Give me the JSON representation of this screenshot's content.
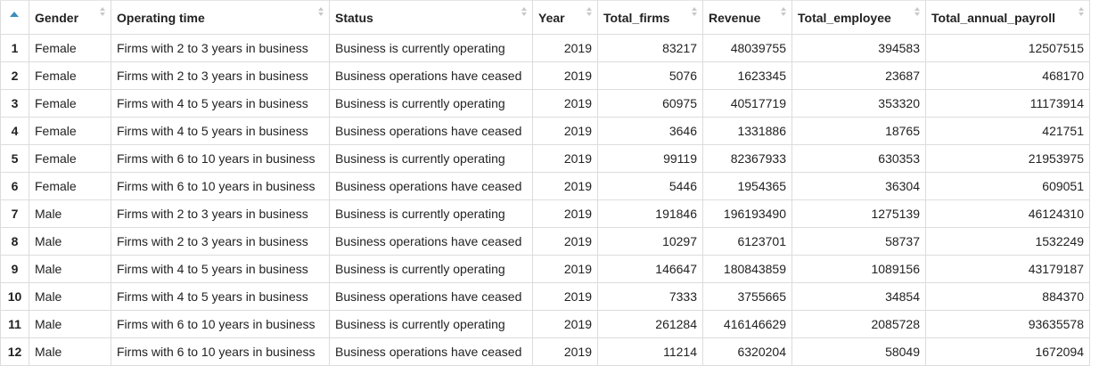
{
  "columns": [
    "Gender",
    "Operating time",
    "Status",
    "Year",
    "Total_firms",
    "Revenue",
    "Total_employee",
    "Total_annual_payroll"
  ],
  "rows": [
    {
      "idx": "1",
      "gender": "Female",
      "op": "Firms with 2 to 3 years in business",
      "status": "Business is currently operating",
      "year": "2019",
      "firms": "83217",
      "rev": "48039755",
      "emp": "394583",
      "pay": "12507515"
    },
    {
      "idx": "2",
      "gender": "Female",
      "op": "Firms with 2 to 3 years in business",
      "status": "Business operations have ceased",
      "year": "2019",
      "firms": "5076",
      "rev": "1623345",
      "emp": "23687",
      "pay": "468170"
    },
    {
      "idx": "3",
      "gender": "Female",
      "op": "Firms with 4 to 5 years in business",
      "status": "Business is currently operating",
      "year": "2019",
      "firms": "60975",
      "rev": "40517719",
      "emp": "353320",
      "pay": "11173914"
    },
    {
      "idx": "4",
      "gender": "Female",
      "op": "Firms with 4 to 5 years in business",
      "status": "Business operations have ceased",
      "year": "2019",
      "firms": "3646",
      "rev": "1331886",
      "emp": "18765",
      "pay": "421751"
    },
    {
      "idx": "5",
      "gender": "Female",
      "op": "Firms with 6 to 10 years in business",
      "status": "Business is currently operating",
      "year": "2019",
      "firms": "99119",
      "rev": "82367933",
      "emp": "630353",
      "pay": "21953975"
    },
    {
      "idx": "6",
      "gender": "Female",
      "op": "Firms with 6 to 10 years in business",
      "status": "Business operations have ceased",
      "year": "2019",
      "firms": "5446",
      "rev": "1954365",
      "emp": "36304",
      "pay": "609051"
    },
    {
      "idx": "7",
      "gender": "Male",
      "op": "Firms with 2 to 3 years in business",
      "status": "Business is currently operating",
      "year": "2019",
      "firms": "191846",
      "rev": "196193490",
      "emp": "1275139",
      "pay": "46124310"
    },
    {
      "idx": "8",
      "gender": "Male",
      "op": "Firms with 2 to 3 years in business",
      "status": "Business operations have ceased",
      "year": "2019",
      "firms": "10297",
      "rev": "6123701",
      "emp": "58737",
      "pay": "1532249"
    },
    {
      "idx": "9",
      "gender": "Male",
      "op": "Firms with 4 to 5 years in business",
      "status": "Business is currently operating",
      "year": "2019",
      "firms": "146647",
      "rev": "180843859",
      "emp": "1089156",
      "pay": "43179187"
    },
    {
      "idx": "10",
      "gender": "Male",
      "op": "Firms with 4 to 5 years in business",
      "status": "Business operations have ceased",
      "year": "2019",
      "firms": "7333",
      "rev": "3755665",
      "emp": "34854",
      "pay": "884370"
    },
    {
      "idx": "11",
      "gender": "Male",
      "op": "Firms with 6 to 10 years in business",
      "status": "Business is currently operating",
      "year": "2019",
      "firms": "261284",
      "rev": "416146629",
      "emp": "2085728",
      "pay": "93635578"
    },
    {
      "idx": "12",
      "gender": "Male",
      "op": "Firms with 6 to 10 years in business",
      "status": "Business operations have ceased",
      "year": "2019",
      "firms": "11214",
      "rev": "6320204",
      "emp": "58049",
      "pay": "1672094"
    }
  ],
  "colors": {
    "sort_active": "#3c8dbc",
    "sort_inactive": "#c8c8c8",
    "border": "#dcdcdc"
  }
}
